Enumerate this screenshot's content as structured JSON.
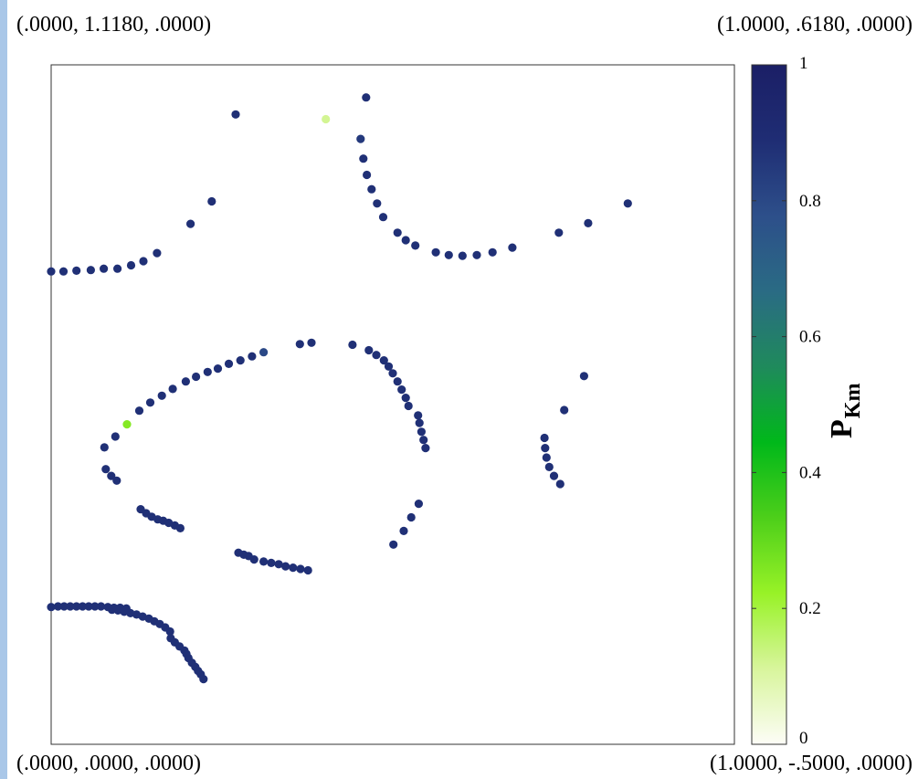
{
  "corners": {
    "top_left": "(.0000, 1.1180, .0000)",
    "top_right": "(1.0000, .6180, .0000)",
    "bottom_left": "(.0000, .0000, .0000)",
    "bottom_right": "(1.0000, -.5000, .0000)"
  },
  "colors": {
    "side_bar": "#a9c7e8",
    "frame": "#333333",
    "colormap": [
      "#fdfdf7",
      "#d8f59c",
      "#98f227",
      "#4dcf1a",
      "#00b81a",
      "#1f8a5c",
      "#2a6b84",
      "#2d4f8a",
      "#1f2d74",
      "#1b1f66"
    ]
  },
  "chart_data": {
    "type": "scatter",
    "title": "",
    "xlabel": "",
    "ylabel": "",
    "xlim": [
      0,
      1
    ],
    "ylim": [
      0,
      1
    ],
    "grid": false,
    "colorbar": {
      "label": "P",
      "label_subscript": "Km",
      "range": [
        0,
        1
      ],
      "ticks": [
        "0",
        "0.2",
        "0.4",
        "0.6",
        "0.8",
        "1"
      ]
    },
    "points": [
      {
        "x": 0.0,
        "y": 0.696,
        "p": 0.88
      },
      {
        "x": 0.018,
        "y": 0.696,
        "p": 0.88
      },
      {
        "x": 0.037,
        "y": 0.697,
        "p": 0.88
      },
      {
        "x": 0.058,
        "y": 0.698,
        "p": 0.88
      },
      {
        "x": 0.077,
        "y": 0.7,
        "p": 0.88
      },
      {
        "x": 0.097,
        "y": 0.7,
        "p": 0.88
      },
      {
        "x": 0.117,
        "y": 0.705,
        "p": 0.88
      },
      {
        "x": 0.135,
        "y": 0.711,
        "p": 0.88
      },
      {
        "x": 0.155,
        "y": 0.723,
        "p": 0.88
      },
      {
        "x": 0.204,
        "y": 0.766,
        "p": 0.88
      },
      {
        "x": 0.235,
        "y": 0.799,
        "p": 0.88
      },
      {
        "x": 0.27,
        "y": 0.927,
        "p": 0.88
      },
      {
        "x": 0.402,
        "y": 0.92,
        "p": 0.12
      },
      {
        "x": 0.461,
        "y": 0.952,
        "p": 0.88
      },
      {
        "x": 0.453,
        "y": 0.891,
        "p": 0.85
      },
      {
        "x": 0.457,
        "y": 0.862,
        "p": 0.88
      },
      {
        "x": 0.462,
        "y": 0.838,
        "p": 0.88
      },
      {
        "x": 0.469,
        "y": 0.817,
        "p": 0.88
      },
      {
        "x": 0.477,
        "y": 0.796,
        "p": 0.88
      },
      {
        "x": 0.486,
        "y": 0.776,
        "p": 0.88
      },
      {
        "x": 0.507,
        "y": 0.753,
        "p": 0.88
      },
      {
        "x": 0.519,
        "y": 0.742,
        "p": 0.88
      },
      {
        "x": 0.533,
        "y": 0.734,
        "p": 0.88
      },
      {
        "x": 0.563,
        "y": 0.724,
        "p": 0.88
      },
      {
        "x": 0.582,
        "y": 0.72,
        "p": 0.88
      },
      {
        "x": 0.602,
        "y": 0.719,
        "p": 0.88
      },
      {
        "x": 0.623,
        "y": 0.72,
        "p": 0.88
      },
      {
        "x": 0.646,
        "y": 0.724,
        "p": 0.88
      },
      {
        "x": 0.675,
        "y": 0.731,
        "p": 0.88
      },
      {
        "x": 0.743,
        "y": 0.753,
        "p": 0.88
      },
      {
        "x": 0.786,
        "y": 0.767,
        "p": 0.88
      },
      {
        "x": 0.844,
        "y": 0.796,
        "p": 0.88
      },
      {
        "x": 0.078,
        "y": 0.437,
        "p": 0.88
      },
      {
        "x": 0.094,
        "y": 0.453,
        "p": 0.88
      },
      {
        "x": 0.111,
        "y": 0.471,
        "p": 0.25
      },
      {
        "x": 0.129,
        "y": 0.491,
        "p": 0.88
      },
      {
        "x": 0.145,
        "y": 0.503,
        "p": 0.88
      },
      {
        "x": 0.162,
        "y": 0.513,
        "p": 0.88
      },
      {
        "x": 0.178,
        "y": 0.523,
        "p": 0.88
      },
      {
        "x": 0.197,
        "y": 0.534,
        "p": 0.88
      },
      {
        "x": 0.212,
        "y": 0.541,
        "p": 0.88
      },
      {
        "x": 0.229,
        "y": 0.548,
        "p": 0.88
      },
      {
        "x": 0.244,
        "y": 0.553,
        "p": 0.88
      },
      {
        "x": 0.26,
        "y": 0.56,
        "p": 0.88
      },
      {
        "x": 0.277,
        "y": 0.565,
        "p": 0.88
      },
      {
        "x": 0.294,
        "y": 0.571,
        "p": 0.88
      },
      {
        "x": 0.311,
        "y": 0.577,
        "p": 0.8
      },
      {
        "x": 0.364,
        "y": 0.589,
        "p": 0.88
      },
      {
        "x": 0.381,
        "y": 0.591,
        "p": 0.88
      },
      {
        "x": 0.441,
        "y": 0.588,
        "p": 0.88
      },
      {
        "x": 0.465,
        "y": 0.58,
        "p": 0.88
      },
      {
        "x": 0.476,
        "y": 0.573,
        "p": 0.88
      },
      {
        "x": 0.487,
        "y": 0.565,
        "p": 0.88
      },
      {
        "x": 0.494,
        "y": 0.556,
        "p": 0.88
      },
      {
        "x": 0.5,
        "y": 0.546,
        "p": 0.88
      },
      {
        "x": 0.507,
        "y": 0.534,
        "p": 0.88
      },
      {
        "x": 0.513,
        "y": 0.522,
        "p": 0.88
      },
      {
        "x": 0.519,
        "y": 0.51,
        "p": 0.88
      },
      {
        "x": 0.523,
        "y": 0.498,
        "p": 0.88
      },
      {
        "x": 0.537,
        "y": 0.484,
        "p": 0.88
      },
      {
        "x": 0.539,
        "y": 0.473,
        "p": 0.88
      },
      {
        "x": 0.542,
        "y": 0.46,
        "p": 0.88
      },
      {
        "x": 0.545,
        "y": 0.448,
        "p": 0.88
      },
      {
        "x": 0.548,
        "y": 0.436,
        "p": 0.88
      },
      {
        "x": 0.08,
        "y": 0.405,
        "p": 0.88
      },
      {
        "x": 0.088,
        "y": 0.395,
        "p": 0.88
      },
      {
        "x": 0.096,
        "y": 0.388,
        "p": 0.88
      },
      {
        "x": 0.131,
        "y": 0.346,
        "p": 0.88
      },
      {
        "x": 0.139,
        "y": 0.34,
        "p": 0.88
      },
      {
        "x": 0.147,
        "y": 0.335,
        "p": 0.88
      },
      {
        "x": 0.156,
        "y": 0.331,
        "p": 0.88
      },
      {
        "x": 0.164,
        "y": 0.329,
        "p": 0.88
      },
      {
        "x": 0.172,
        "y": 0.326,
        "p": 0.88
      },
      {
        "x": 0.181,
        "y": 0.322,
        "p": 0.88
      },
      {
        "x": 0.189,
        "y": 0.318,
        "p": 0.88
      },
      {
        "x": 0.274,
        "y": 0.282,
        "p": 0.88
      },
      {
        "x": 0.282,
        "y": 0.279,
        "p": 0.88
      },
      {
        "x": 0.289,
        "y": 0.277,
        "p": 0.88
      },
      {
        "x": 0.297,
        "y": 0.272,
        "p": 0.88
      },
      {
        "x": 0.311,
        "y": 0.269,
        "p": 0.88
      },
      {
        "x": 0.322,
        "y": 0.267,
        "p": 0.88
      },
      {
        "x": 0.333,
        "y": 0.265,
        "p": 0.88
      },
      {
        "x": 0.343,
        "y": 0.262,
        "p": 0.88
      },
      {
        "x": 0.354,
        "y": 0.26,
        "p": 0.88
      },
      {
        "x": 0.365,
        "y": 0.258,
        "p": 0.88
      },
      {
        "x": 0.376,
        "y": 0.256,
        "p": 0.88
      },
      {
        "x": 0.501,
        "y": 0.294,
        "p": 0.88
      },
      {
        "x": 0.516,
        "y": 0.314,
        "p": 0.88
      },
      {
        "x": 0.527,
        "y": 0.334,
        "p": 0.88
      },
      {
        "x": 0.538,
        "y": 0.354,
        "p": 0.88
      },
      {
        "x": 0.722,
        "y": 0.451,
        "p": 0.88
      },
      {
        "x": 0.723,
        "y": 0.436,
        "p": 0.88
      },
      {
        "x": 0.725,
        "y": 0.422,
        "p": 0.88
      },
      {
        "x": 0.729,
        "y": 0.408,
        "p": 0.88
      },
      {
        "x": 0.736,
        "y": 0.395,
        "p": 0.88
      },
      {
        "x": 0.745,
        "y": 0.383,
        "p": 0.88
      },
      {
        "x": 0.751,
        "y": 0.492,
        "p": 0.88
      },
      {
        "x": 0.78,
        "y": 0.542,
        "p": 0.88
      },
      {
        "x": 0.0,
        "y": 0.202,
        "p": 0.88
      },
      {
        "x": 0.01,
        "y": 0.203,
        "p": 0.88
      },
      {
        "x": 0.019,
        "y": 0.203,
        "p": 0.88
      },
      {
        "x": 0.028,
        "y": 0.203,
        "p": 0.88
      },
      {
        "x": 0.037,
        "y": 0.203,
        "p": 0.88
      },
      {
        "x": 0.046,
        "y": 0.203,
        "p": 0.88
      },
      {
        "x": 0.055,
        "y": 0.203,
        "p": 0.88
      },
      {
        "x": 0.064,
        "y": 0.203,
        "p": 0.88
      },
      {
        "x": 0.073,
        "y": 0.203,
        "p": 0.88
      },
      {
        "x": 0.083,
        "y": 0.202,
        "p": 0.88
      },
      {
        "x": 0.092,
        "y": 0.201,
        "p": 0.88
      },
      {
        "x": 0.101,
        "y": 0.201,
        "p": 0.88
      },
      {
        "x": 0.11,
        "y": 0.2,
        "p": 0.88
      },
      {
        "x": 0.089,
        "y": 0.198,
        "p": 0.88
      },
      {
        "x": 0.098,
        "y": 0.197,
        "p": 0.88
      },
      {
        "x": 0.107,
        "y": 0.195,
        "p": 0.88
      },
      {
        "x": 0.116,
        "y": 0.193,
        "p": 0.88
      },
      {
        "x": 0.125,
        "y": 0.191,
        "p": 0.88
      },
      {
        "x": 0.134,
        "y": 0.188,
        "p": 0.88
      },
      {
        "x": 0.143,
        "y": 0.185,
        "p": 0.88
      },
      {
        "x": 0.151,
        "y": 0.181,
        "p": 0.88
      },
      {
        "x": 0.159,
        "y": 0.177,
        "p": 0.88
      },
      {
        "x": 0.167,
        "y": 0.172,
        "p": 0.88
      },
      {
        "x": 0.174,
        "y": 0.166,
        "p": 0.88
      },
      {
        "x": 0.175,
        "y": 0.156,
        "p": 0.88
      },
      {
        "x": 0.181,
        "y": 0.15,
        "p": 0.88
      },
      {
        "x": 0.188,
        "y": 0.144,
        "p": 0.88
      },
      {
        "x": 0.195,
        "y": 0.138,
        "p": 0.88
      },
      {
        "x": 0.198,
        "y": 0.133,
        "p": 0.88
      },
      {
        "x": 0.201,
        "y": 0.127,
        "p": 0.88
      },
      {
        "x": 0.206,
        "y": 0.12,
        "p": 0.88
      },
      {
        "x": 0.211,
        "y": 0.114,
        "p": 0.88
      },
      {
        "x": 0.215,
        "y": 0.108,
        "p": 0.88
      },
      {
        "x": 0.219,
        "y": 0.103,
        "p": 0.88
      },
      {
        "x": 0.223,
        "y": 0.096,
        "p": 0.88
      }
    ]
  }
}
